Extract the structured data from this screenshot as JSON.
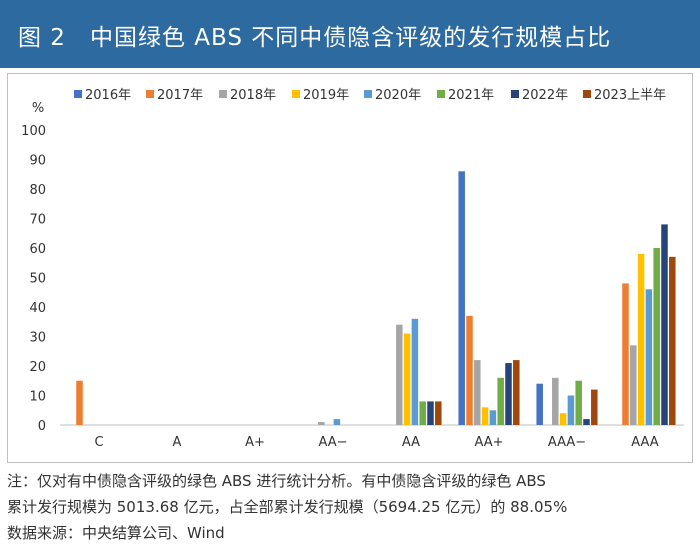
{
  "header": {
    "title": "图 2　中国绿色 ABS 不同中债隐含评级的发行规模占比"
  },
  "chart_data": {
    "type": "bar",
    "ylabel": "%",
    "ylim": [
      0,
      100
    ],
    "yticks": [
      0,
      10,
      20,
      30,
      40,
      50,
      60,
      70,
      80,
      90,
      100
    ],
    "categories": [
      "C",
      "A",
      "A+",
      "AA−",
      "AA",
      "AA+",
      "AAA−",
      "AAA"
    ],
    "legend_position": "top",
    "grid": false,
    "series": [
      {
        "name": "2016年",
        "color": "#4472c4",
        "values": [
          0,
          0,
          0,
          0,
          0,
          86,
          14,
          0
        ]
      },
      {
        "name": "2017年",
        "color": "#ed7d31",
        "values": [
          15,
          0,
          0,
          0,
          0,
          37,
          0,
          48
        ]
      },
      {
        "name": "2018年",
        "color": "#a5a5a5",
        "values": [
          0,
          0,
          0,
          1,
          34,
          22,
          16,
          27
        ]
      },
      {
        "name": "2019年",
        "color": "#ffc000",
        "values": [
          0,
          0,
          0,
          0,
          31,
          6,
          4,
          58
        ]
      },
      {
        "name": "2020年",
        "color": "#5b9bd5",
        "values": [
          0,
          0,
          0,
          2,
          36,
          5,
          10,
          46
        ]
      },
      {
        "name": "2021年",
        "color": "#70ad47",
        "values": [
          0,
          0,
          0,
          0,
          8,
          16,
          15,
          60
        ]
      },
      {
        "name": "2022年",
        "color": "#264478",
        "values": [
          0,
          0,
          0,
          0,
          8,
          21,
          2,
          68
        ]
      },
      {
        "name": "2023上半年",
        "color": "#9e480e",
        "values": [
          0,
          0,
          0,
          0,
          8,
          22,
          12,
          57
        ]
      }
    ]
  },
  "footnotes": {
    "line1": "注：仅对有中债隐含评级的绿色 ABS 进行统计分析。有中债隐含评级的绿色 ABS",
    "line2": "累计发行规模为 5013.68 亿元，占全部累计发行规模（5694.25 亿元）的 88.05%",
    "line3": "数据来源：中央结算公司、Wind"
  }
}
